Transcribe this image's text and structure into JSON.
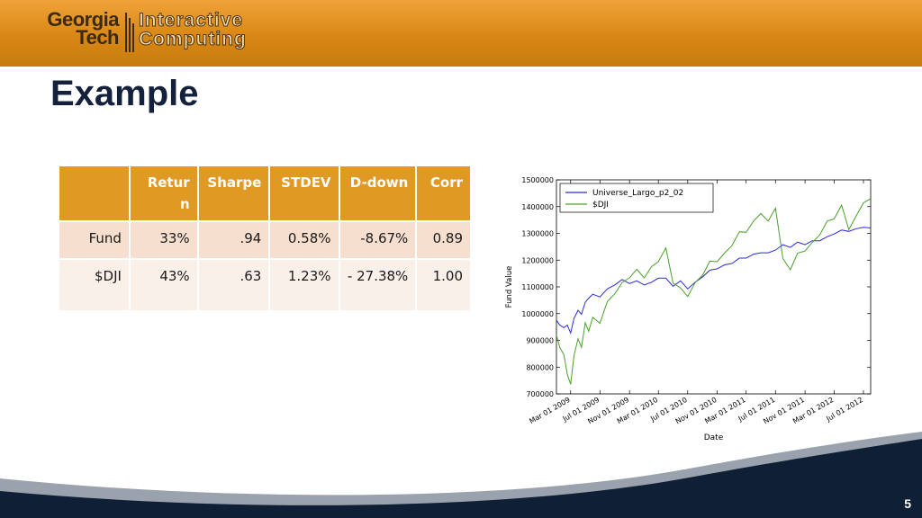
{
  "header": {
    "logo": {
      "line1": "Georgia",
      "line2": "Tech",
      "line3": "Interactive",
      "line4": "Computing"
    },
    "brand_color": "#d88714"
  },
  "slide": {
    "title": "Example",
    "page_number": "5"
  },
  "table": {
    "headers": [
      "",
      "Retur n",
      "Sharpe",
      "STDEV",
      "D-down",
      "Corr"
    ],
    "rows": [
      [
        "Fund",
        "33%",
        ".94",
        "0.58%",
        "-8.67%",
        "0.89"
      ],
      [
        "$DJI",
        "43%",
        ".63",
        "1.23%",
        "- 27.38%",
        "1.00"
      ]
    ],
    "header_color": "#e09a23"
  },
  "chart_data": {
    "type": "line",
    "xlabel": "Date",
    "ylabel": "Fund Value",
    "ylim": [
      700000,
      1500000
    ],
    "xlim": [
      "2009-01-01",
      "2012-07-31"
    ],
    "yticks": [
      "700000",
      "800000",
      "900000",
      "1000000",
      "1100000",
      "1200000",
      "1300000",
      "1400000",
      "1500000"
    ],
    "xticks": [
      "Mar 01 2009",
      "Jul 01 2009",
      "Nov 01 2009",
      "Mar 01 2010",
      "Jul 01 2010",
      "Nov 01 2010",
      "Mar 01 2011",
      "Jul 01 2011",
      "Nov 01 2011",
      "Mar 01 2012",
      "Jul 01 2012"
    ],
    "legend_position": "upper-left",
    "series": [
      {
        "name": "Universe_Largo_p2_02",
        "color": "#2a2ad8",
        "x": [
          "2009-01-01",
          "2009-01-15",
          "2009-02-01",
          "2009-02-15",
          "2009-03-01",
          "2009-03-15",
          "2009-04-01",
          "2009-04-15",
          "2009-05-01",
          "2009-05-15",
          "2009-06-01",
          "2009-07-01",
          "2009-08-01",
          "2009-09-01",
          "2009-10-01",
          "2009-11-01",
          "2009-12-01",
          "2010-01-01",
          "2010-02-01",
          "2010-03-01",
          "2010-04-01",
          "2010-05-01",
          "2010-06-01",
          "2010-07-01",
          "2010-08-01",
          "2010-09-01",
          "2010-10-01",
          "2010-11-01",
          "2010-12-01",
          "2011-01-01",
          "2011-02-01",
          "2011-03-01",
          "2011-04-01",
          "2011-05-01",
          "2011-06-01",
          "2011-07-01",
          "2011-08-01",
          "2011-09-01",
          "2011-10-01",
          "2011-11-01",
          "2011-12-01",
          "2012-01-01",
          "2012-02-01",
          "2012-03-01",
          "2012-04-01",
          "2012-05-01",
          "2012-06-01",
          "2012-07-01",
          "2012-07-31"
        ],
        "values": [
          975000,
          960000,
          945000,
          960000,
          925000,
          985000,
          1010000,
          1000000,
          1040000,
          1060000,
          1070000,
          1065000,
          1090000,
          1110000,
          1125000,
          1115000,
          1120000,
          1110000,
          1115000,
          1135000,
          1130000,
          1105000,
          1120000,
          1095000,
          1115000,
          1140000,
          1160000,
          1170000,
          1180000,
          1190000,
          1205000,
          1210000,
          1220000,
          1230000,
          1225000,
          1240000,
          1255000,
          1250000,
          1265000,
          1260000,
          1270000,
          1275000,
          1285000,
          1300000,
          1310000,
          1310000,
          1315000,
          1325000,
          1320000
        ]
      },
      {
        "name": "$DJI",
        "color": "#4aa02a",
        "x": [
          "2009-01-01",
          "2009-01-15",
          "2009-02-01",
          "2009-02-15",
          "2009-03-01",
          "2009-03-15",
          "2009-04-01",
          "2009-04-15",
          "2009-05-01",
          "2009-05-15",
          "2009-06-01",
          "2009-07-01",
          "2009-08-01",
          "2009-09-01",
          "2009-10-01",
          "2009-11-01",
          "2009-12-01",
          "2010-01-01",
          "2010-02-01",
          "2010-03-01",
          "2010-04-01",
          "2010-05-01",
          "2010-06-01",
          "2010-07-01",
          "2010-08-01",
          "2010-09-01",
          "2010-10-01",
          "2010-11-01",
          "2010-12-01",
          "2011-01-01",
          "2011-02-01",
          "2011-03-01",
          "2011-04-01",
          "2011-05-01",
          "2011-06-01",
          "2011-07-01",
          "2011-08-01",
          "2011-09-01",
          "2011-10-01",
          "2011-11-01",
          "2011-12-01",
          "2012-01-01",
          "2012-02-01",
          "2012-03-01",
          "2012-04-01",
          "2012-05-01",
          "2012-06-01",
          "2012-07-01",
          "2012-07-31"
        ],
        "values": [
          920000,
          880000,
          840000,
          780000,
          730000,
          850000,
          900000,
          880000,
          960000,
          940000,
          980000,
          970000,
          1040000,
          1080000,
          1110000,
          1140000,
          1160000,
          1140000,
          1170000,
          1200000,
          1240000,
          1120000,
          1090000,
          1070000,
          1110000,
          1150000,
          1190000,
          1200000,
          1220000,
          1260000,
          1300000,
          1310000,
          1340000,
          1380000,
          1340000,
          1400000,
          1200000,
          1170000,
          1220000,
          1240000,
          1260000,
          1300000,
          1340000,
          1360000,
          1400000,
          1320000,
          1360000,
          1420000,
          1430000
        ]
      }
    ]
  },
  "footer": {
    "band_color": "#0f1f35"
  }
}
